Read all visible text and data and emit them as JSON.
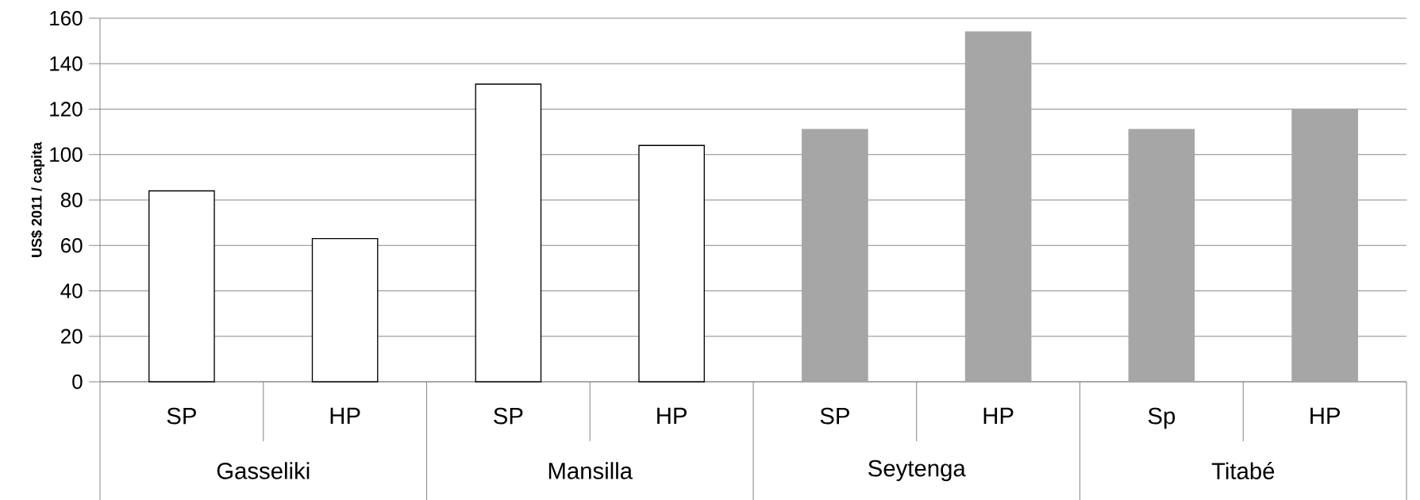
{
  "chart_data": {
    "type": "bar",
    "ylabel": "US$ 2011 / capita",
    "categories": [
      "SP",
      "HP",
      "SP",
      "HP",
      "SP",
      "HP",
      "Sp",
      "HP"
    ],
    "values": [
      84,
      63,
      131,
      104,
      111,
      154,
      111,
      120
    ],
    "colors": [
      "#ffffff",
      "#ffffff",
      "#ffffff",
      "#ffffff",
      "#a6a6a6",
      "#a6a6a6",
      "#a6a6a6",
      "#a6a6a6"
    ],
    "annotations": [
      "Gasseliki",
      "Mansilla",
      "Seytenga",
      "Titabé"
    ],
    "ylim": [
      0,
      160
    ],
    "yticks": [
      0,
      20,
      40,
      60,
      80,
      100,
      120,
      140,
      160
    ],
    "grid": "y"
  }
}
